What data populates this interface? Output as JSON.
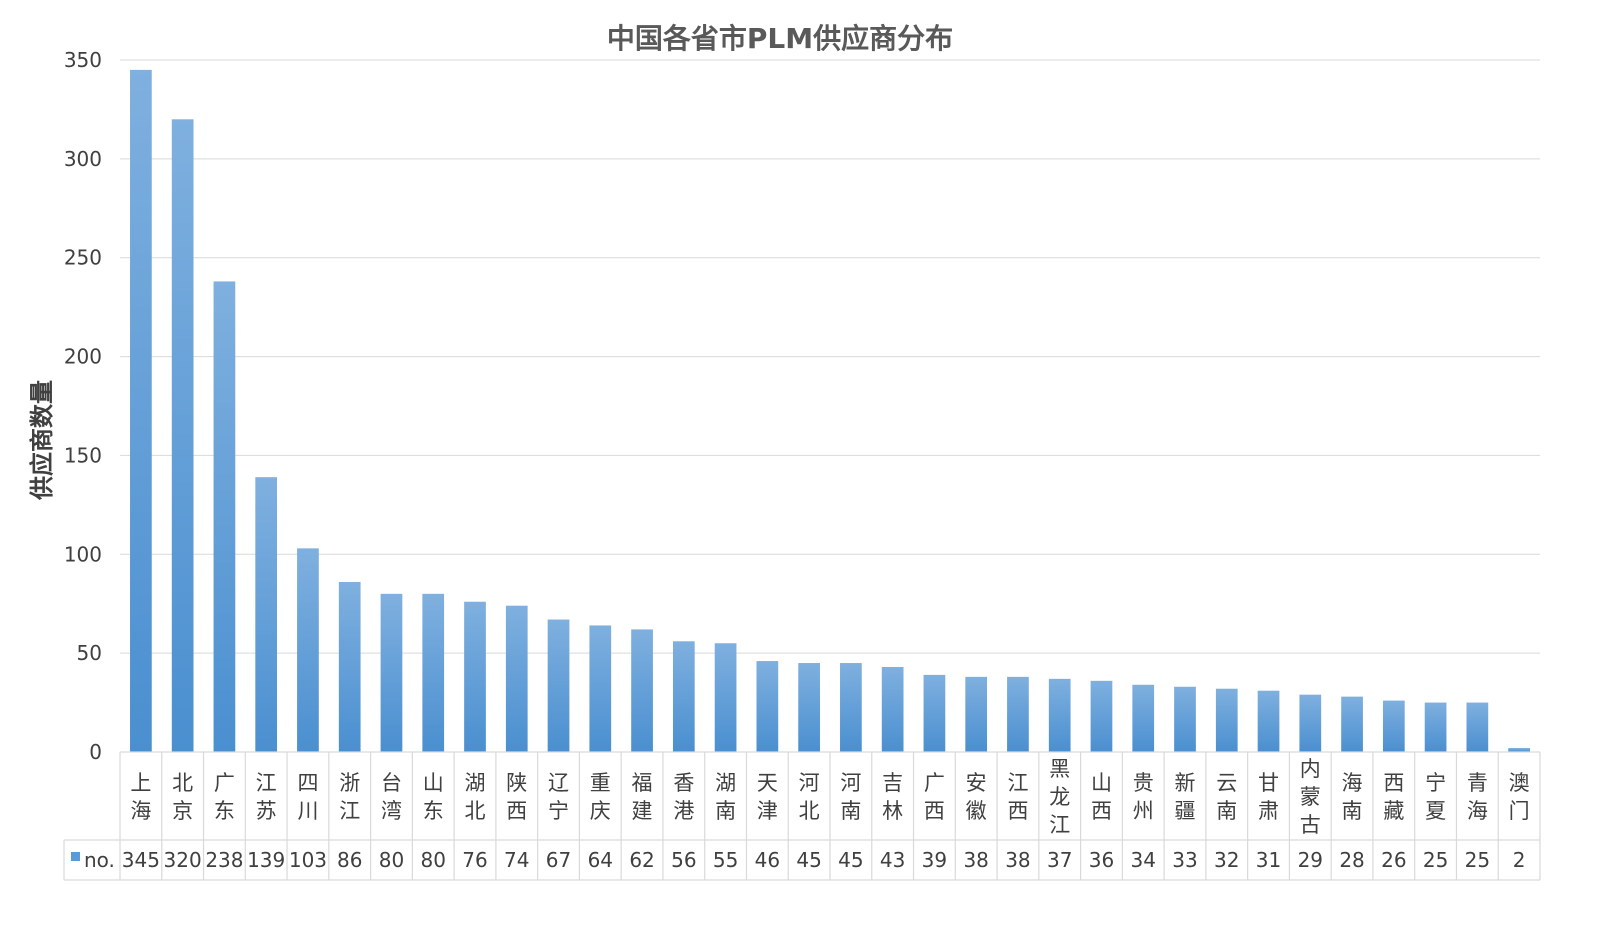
{
  "chart_data": {
    "type": "bar",
    "title": "中国各省市PLM供应商分布",
    "xlabel": "",
    "ylabel": "供应商数量",
    "ylim": [
      0,
      350
    ],
    "yticks": [
      0,
      50,
      100,
      150,
      200,
      250,
      300,
      350
    ],
    "grid": true,
    "legend_placement": "bottom-left (data table)",
    "data_table": true,
    "categories": [
      "上海",
      "北京",
      "广东",
      "江苏",
      "四川",
      "浙江",
      "台湾",
      "山东",
      "湖北",
      "陕西",
      "辽宁",
      "重庆",
      "福建",
      "香港",
      "湖南",
      "天津",
      "河北",
      "河南",
      "吉林",
      "广西",
      "安徽",
      "江西",
      "黑龙江",
      "山西",
      "贵州",
      "新疆",
      "云南",
      "甘肃",
      "内蒙古",
      "海南",
      "西藏",
      "宁夏",
      "青海",
      "澳门"
    ],
    "series": [
      {
        "name": "no.",
        "color": "#5b9bd5",
        "values": [
          345,
          320,
          238,
          139,
          103,
          86,
          80,
          80,
          76,
          74,
          67,
          64,
          62,
          56,
          55,
          46,
          45,
          45,
          43,
          39,
          38,
          38,
          37,
          36,
          34,
          33,
          32,
          31,
          29,
          28,
          26,
          25,
          25,
          2
        ]
      }
    ]
  },
  "colors": {
    "bar_top": "#7fb0df",
    "bar_bottom": "#4a8fd0",
    "grid": "#d9d9d9",
    "text": "#404040",
    "title": "#595959"
  }
}
